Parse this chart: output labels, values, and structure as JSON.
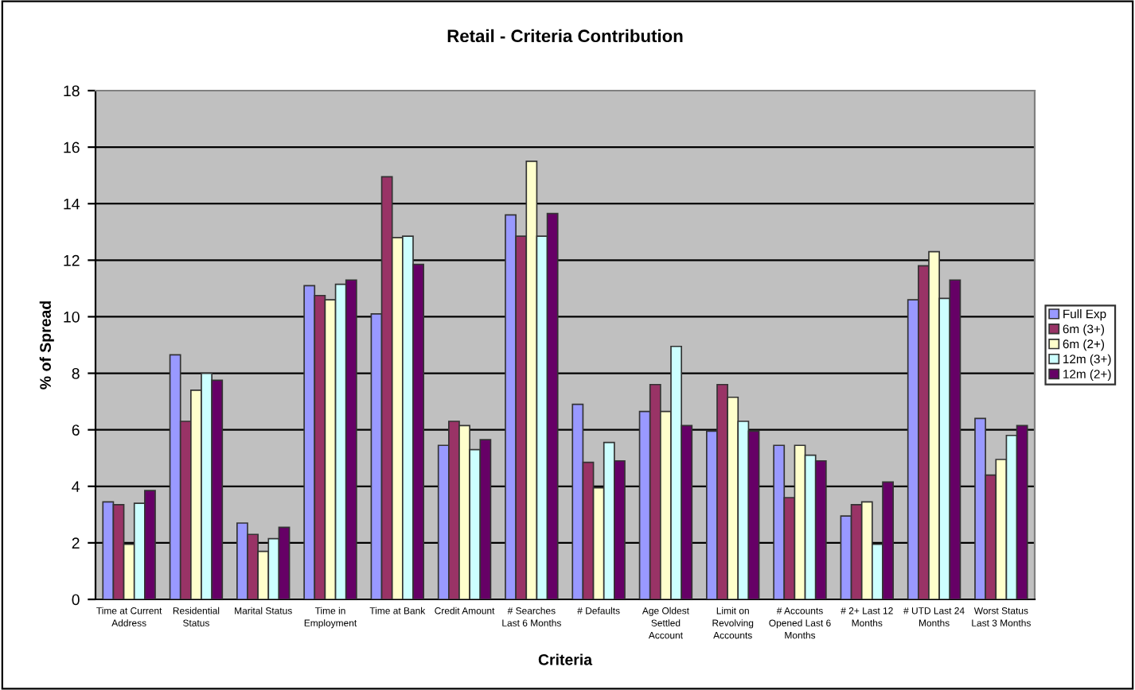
{
  "chart_data": {
    "type": "bar",
    "title": "Retail - Criteria Contribution",
    "xlabel": "Criteria",
    "ylabel": "% of Spread",
    "categories": [
      "Time at Current\nAddress",
      "Residential\nStatus",
      "Marital Status",
      "Time in\nEmployment",
      "Time at Bank",
      "Credit Amount",
      "# Searches\nLast 6 Months",
      "# Defaults",
      "Age Oldest\nSettled\nAccount",
      "Limit on\nRevolving\nAccounts",
      "# Accounts\nOpened Last 6\nMonths",
      "# 2+ Last 12\nMonths",
      "# UTD Last 24\nMonths",
      "Worst Status\nLast 3 Months"
    ],
    "series": [
      {
        "name": "Full Exp",
        "color": "#9999ff",
        "values": [
          3.45,
          8.65,
          2.7,
          11.1,
          10.1,
          5.45,
          13.6,
          6.9,
          6.65,
          5.95,
          5.45,
          2.95,
          10.6,
          6.4
        ]
      },
      {
        "name": "6m (3+)",
        "color": "#993366",
        "values": [
          3.35,
          6.3,
          2.3,
          10.75,
          14.95,
          6.3,
          12.85,
          4.85,
          7.6,
          7.6,
          3.6,
          3.35,
          11.8,
          4.4
        ]
      },
      {
        "name": "6m (2+)",
        "color": "#ffffcc",
        "values": [
          1.95,
          7.4,
          1.7,
          10.6,
          12.8,
          6.15,
          15.5,
          3.95,
          6.65,
          7.15,
          5.45,
          3.45,
          12.3,
          4.95
        ]
      },
      {
        "name": "12m (3+)",
        "color": "#ccffff",
        "values": [
          3.4,
          8.0,
          2.15,
          11.15,
          12.85,
          5.3,
          12.85,
          5.55,
          8.95,
          6.3,
          5.1,
          1.95,
          10.65,
          5.8
        ]
      },
      {
        "name": "12m (2+)",
        "color": "#660066",
        "values": [
          3.85,
          7.75,
          2.55,
          11.3,
          11.85,
          5.65,
          13.65,
          4.9,
          6.15,
          5.95,
          4.9,
          4.15,
          11.3,
          6.15
        ]
      }
    ],
    "ylim": [
      0,
      18
    ],
    "yticks": [
      0,
      2,
      4,
      6,
      8,
      10,
      12,
      14,
      16,
      18
    ],
    "grid": "y",
    "legend": "right"
  }
}
